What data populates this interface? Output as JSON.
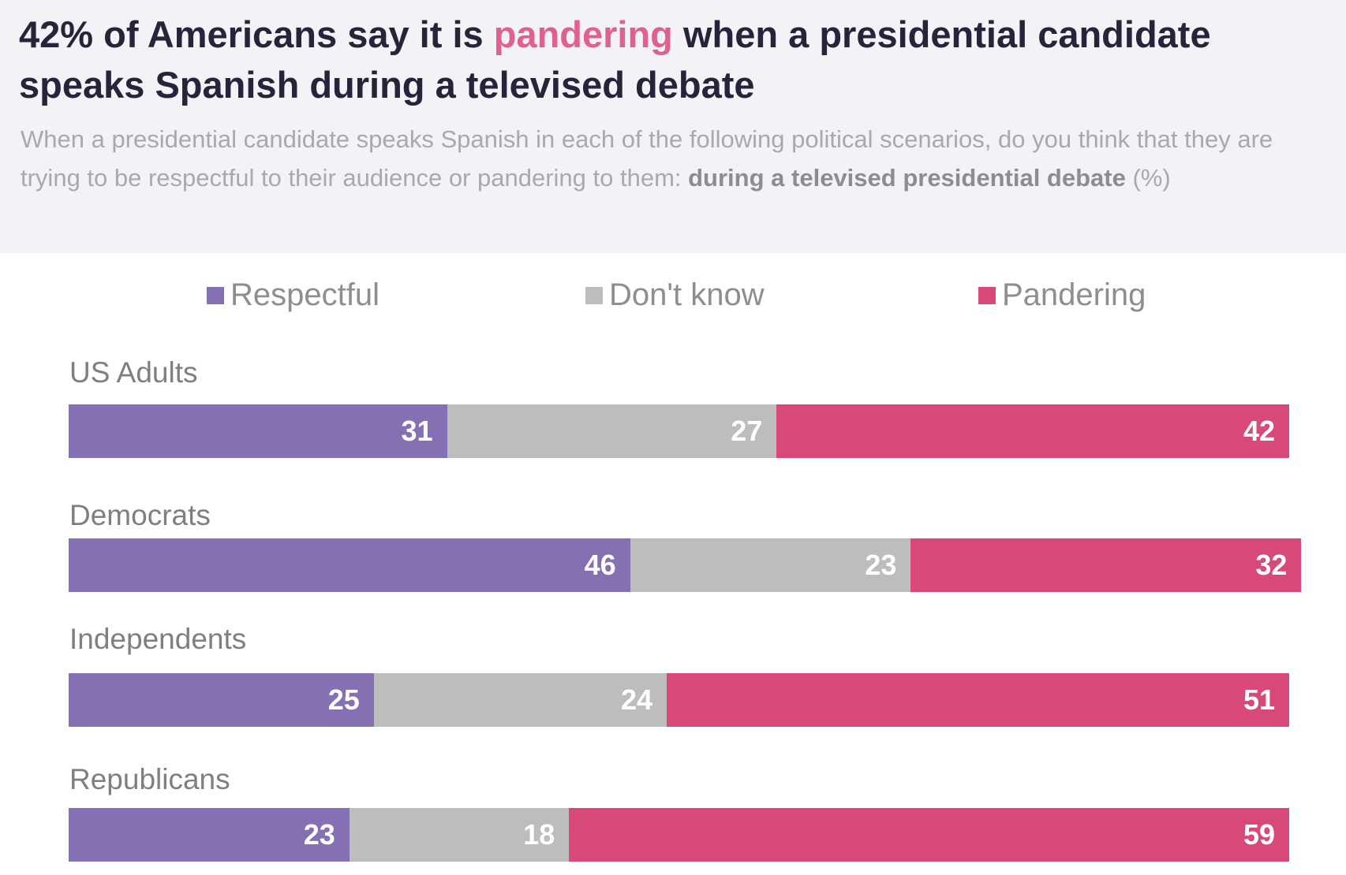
{
  "header": {
    "title_before": "42% of Americans say it is ",
    "title_highlight": "pandering",
    "title_after": " when a presidential candidate speaks Spanish during a televised debate",
    "subtitle": "When a presidential candidate speaks Spanish in each of the following political scenarios, do you think that they are trying to be respectful to their audience or pandering to them:",
    "subtitle_bold": "during a televised presidential debate",
    "subtitle_unit": "(%)"
  },
  "chart_data": {
    "type": "bar",
    "orientation": "horizontal-stacked",
    "categories": [
      "US Adults",
      "Democrats",
      "Independents",
      "Republicans"
    ],
    "series": [
      {
        "name": "Respectful",
        "color": "#8670b4",
        "values": [
          31,
          46,
          25,
          23
        ]
      },
      {
        "name": "Don't know",
        "color": "#bdbdbd",
        "values": [
          27,
          23,
          24,
          18
        ]
      },
      {
        "name": "Pandering",
        "color": "#d8487b",
        "values": [
          42,
          32,
          51,
          59
        ]
      }
    ],
    "legend": "top",
    "grid": false,
    "xlim": [
      0,
      100
    ]
  }
}
